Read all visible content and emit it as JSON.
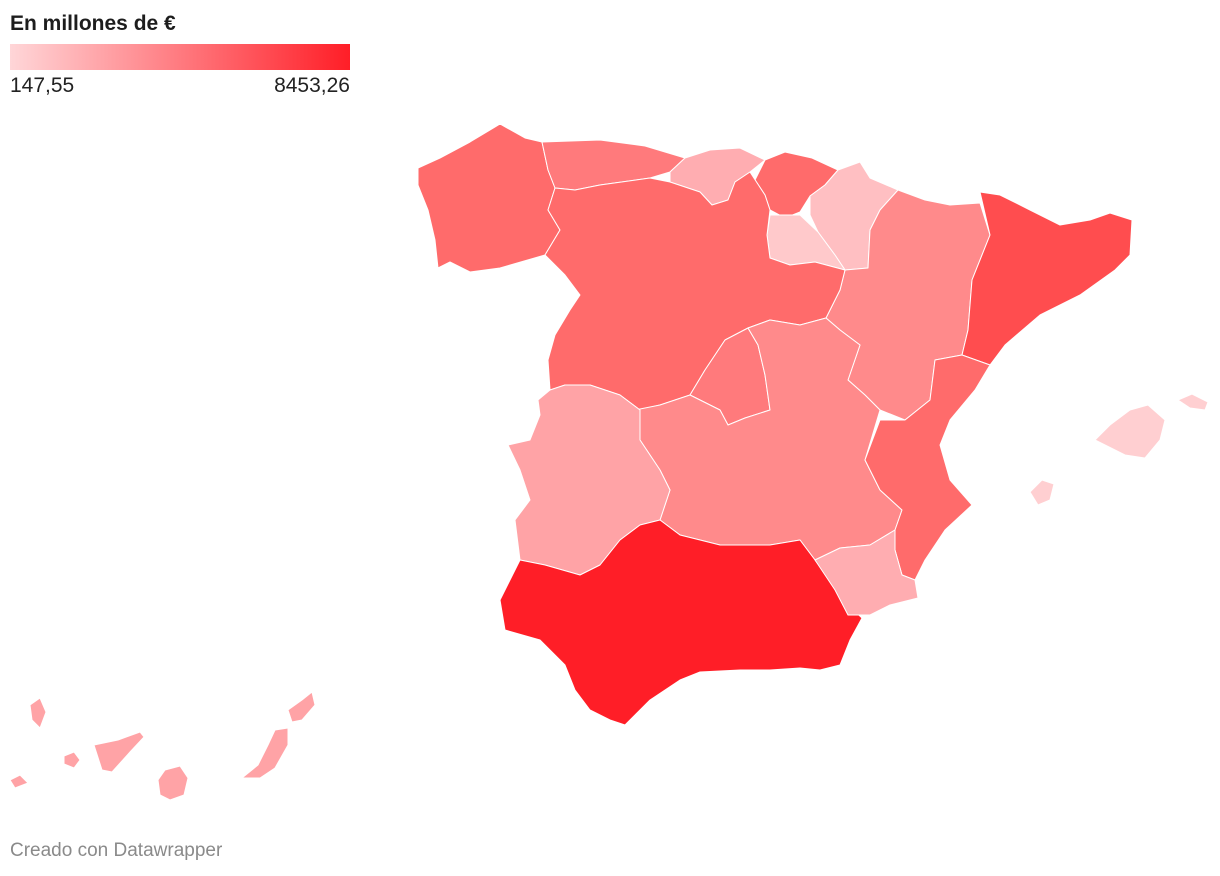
{
  "legend": {
    "title": "En millones de €",
    "min_label": "147,55",
    "max_label": "8453,26",
    "min_value": 147.55,
    "max_value": 8453.26,
    "color_low": "#ffd6d8",
    "color_high": "#ff1e27"
  },
  "footer": {
    "credit": "Creado con Datawrapper"
  },
  "map_data": {
    "type": "choropleth",
    "regions": [
      {
        "id": "galicia",
        "color": "#ff6b6b"
      },
      {
        "id": "asturias",
        "color": "#ff7a7c"
      },
      {
        "id": "cantabria",
        "color": "#ffadb1"
      },
      {
        "id": "pais-vasco",
        "color": "#ff6b6b"
      },
      {
        "id": "navarra",
        "color": "#ffbfc2"
      },
      {
        "id": "la-rioja",
        "color": "#ffc9cb"
      },
      {
        "id": "aragon",
        "color": "#ff8a8b"
      },
      {
        "id": "cataluna",
        "color": "#ff4d4f"
      },
      {
        "id": "castilla-y-leon",
        "color": "#ff6b6b"
      },
      {
        "id": "madrid",
        "color": "#ff7a7c"
      },
      {
        "id": "castilla-la-mancha",
        "color": "#ff8a8b"
      },
      {
        "id": "comunidad-valenciana",
        "color": "#ff6b6b"
      },
      {
        "id": "extremadura",
        "color": "#ffa3a6"
      },
      {
        "id": "andalucia",
        "color": "#ff1e27"
      },
      {
        "id": "murcia",
        "color": "#ffadb1"
      },
      {
        "id": "islas-baleares",
        "color": "#ffcfd1"
      },
      {
        "id": "islas-canarias",
        "color": "#ffa3a6"
      }
    ]
  }
}
